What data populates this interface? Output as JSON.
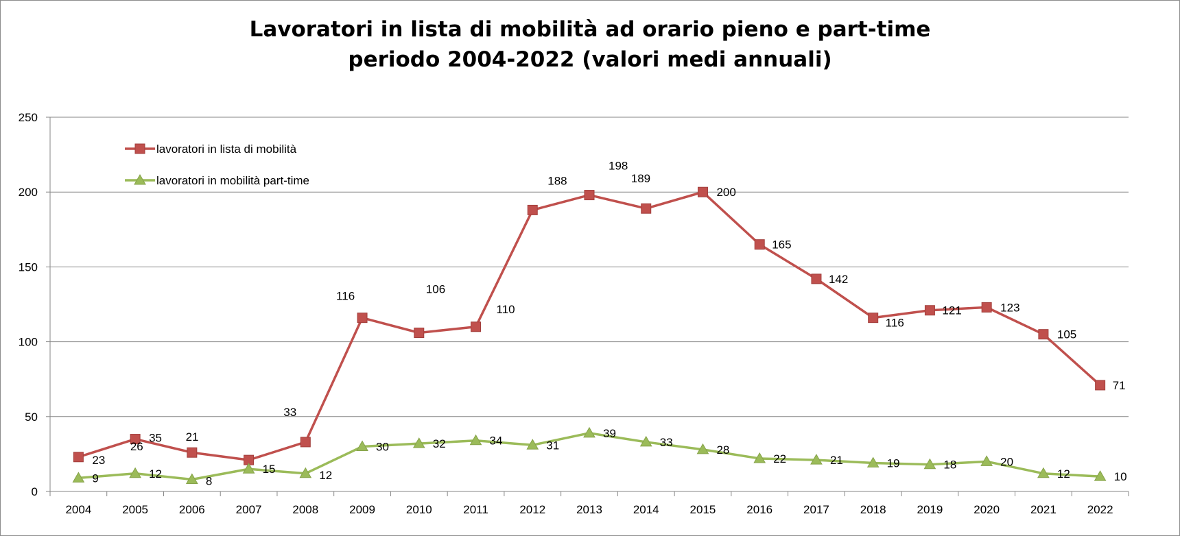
{
  "chart_data": {
    "type": "line",
    "title_line1": "Lavoratori in lista di mobilità ad orario pieno e part-time",
    "title_line2": "periodo  2004-2022 (valori medi annuali)",
    "xlabel": "",
    "ylabel": "",
    "ylim": [
      0,
      250
    ],
    "yticks": [
      "0",
      "50",
      "100",
      "150",
      "200",
      "250"
    ],
    "grid": "horizontal",
    "legend_position": "top-left",
    "categories": [
      "2004",
      "2005",
      "2006",
      "2007",
      "2008",
      "2009",
      "2010",
      "2011",
      "2012",
      "2013",
      "2014",
      "2015",
      "2016",
      "2017",
      "2018",
      "2019",
      "2020",
      "2021",
      "2022"
    ],
    "series": [
      {
        "name": "lavoratori in lista di mobilità",
        "color": "#C0504D",
        "marker": "square",
        "values": [
          23,
          35,
          26,
          21,
          33,
          116,
          106,
          110,
          188,
          198,
          189,
          200,
          165,
          142,
          116,
          121,
          123,
          105,
          71
        ],
        "labels": [
          "23",
          "35",
          "26",
          "21",
          "33",
          "116",
          "106",
          "110",
          "188",
          "198",
          "189",
          "200",
          "165",
          "142",
          "116",
          "121",
          "123",
          "105",
          "71"
        ]
      },
      {
        "name": "lavoratori in mobilità part-time",
        "color": "#9BBB59",
        "marker": "triangle",
        "values": [
          9,
          12,
          8,
          15,
          12,
          30,
          32,
          34,
          31,
          39,
          33,
          28,
          22,
          21,
          19,
          18,
          20,
          12,
          10
        ],
        "labels": [
          "9",
          "12",
          "8",
          "15",
          "12",
          "30",
          "32",
          "34",
          "31",
          "39",
          "33",
          "28",
          "22",
          "21",
          "19",
          "18",
          "20",
          "12",
          "10"
        ]
      }
    ]
  }
}
